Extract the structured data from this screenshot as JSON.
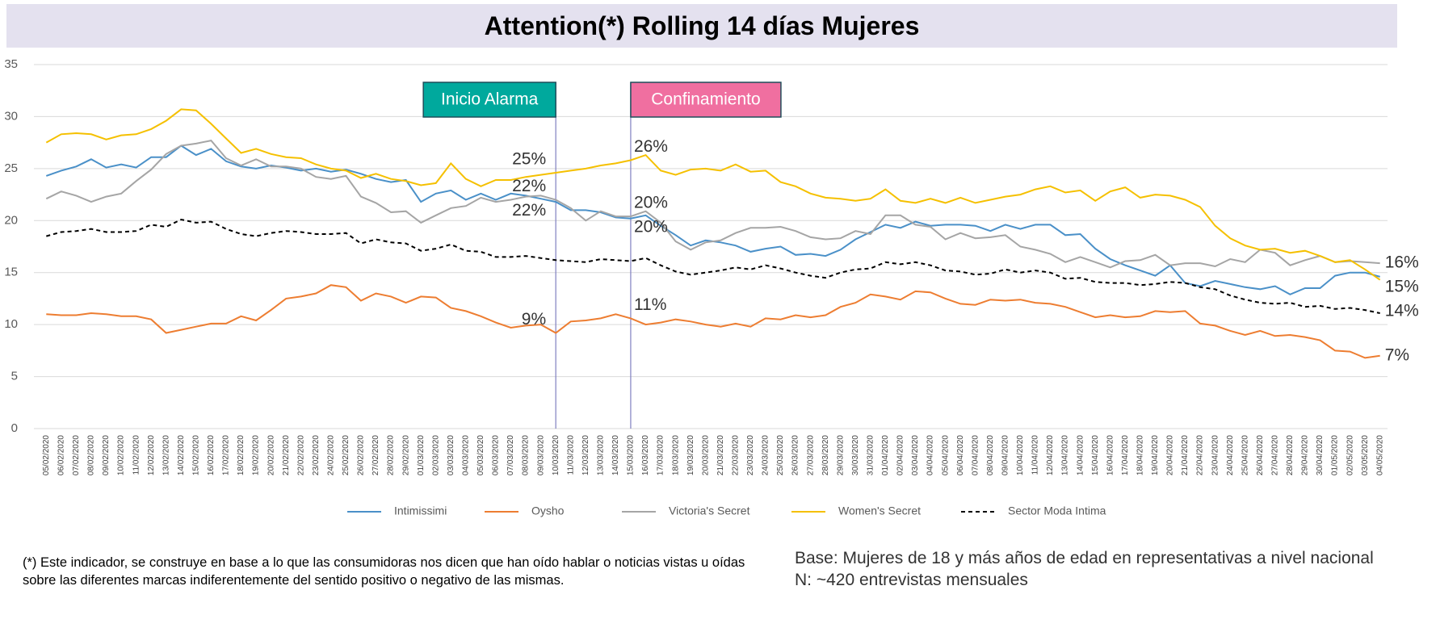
{
  "chart_data": {
    "type": "line",
    "title": "Attention(*) Rolling 14 días Mujeres",
    "categories": [
      "05/02/2020",
      "06/02/2020",
      "07/02/2020",
      "08/02/2020",
      "09/02/2020",
      "10/02/2020",
      "11/02/2020",
      "12/02/2020",
      "13/02/2020",
      "14/02/2020",
      "15/02/2020",
      "16/02/2020",
      "17/02/2020",
      "18/02/2020",
      "19/02/2020",
      "20/02/2020",
      "21/02/2020",
      "22/02/2020",
      "23/02/2020",
      "24/02/2020",
      "25/02/2020",
      "26/02/2020",
      "27/02/2020",
      "28/02/2020",
      "29/02/2020",
      "01/03/2020",
      "02/03/2020",
      "03/03/2020",
      "04/03/2020",
      "05/03/2020",
      "06/03/2020",
      "07/03/2020",
      "08/03/2020",
      "09/03/2020",
      "10/03/2020",
      "11/03/2020",
      "12/03/2020",
      "13/03/2020",
      "14/03/2020",
      "15/03/2020",
      "16/03/2020",
      "17/03/2020",
      "18/03/2020",
      "19/03/2020",
      "20/03/2020",
      "21/03/2020",
      "22/03/2020",
      "23/03/2020",
      "24/03/2020",
      "25/03/2020",
      "26/03/2020",
      "27/03/2020",
      "28/03/2020",
      "29/03/2020",
      "30/03/2020",
      "31/03/2020",
      "01/04/2020",
      "02/04/2020",
      "03/04/2020",
      "04/04/2020",
      "05/04/2020",
      "06/04/2020",
      "07/04/2020",
      "08/04/2020",
      "09/04/2020",
      "10/04/2020",
      "11/04/2020",
      "12/04/2020",
      "13/04/2020",
      "14/04/2020",
      "15/04/2020",
      "16/04/2020",
      "17/04/2020",
      "18/04/2020",
      "19/04/2020",
      "20/04/2020",
      "21/04/2020",
      "22/04/2020",
      "23/04/2020",
      "24/04/2020",
      "25/04/2020",
      "26/04/2020",
      "27/04/2020",
      "28/04/2020",
      "29/04/2020",
      "30/04/2020",
      "01/05/2020",
      "02/05/2020",
      "03/05/2020",
      "04/05/2020"
    ],
    "series": [
      {
        "name": "Intimissimi",
        "color": "#4a90c8",
        "values": [
          24.3,
          24.8,
          25.2,
          25.9,
          25.1,
          25.4,
          25.1,
          26.1,
          26.1,
          27.2,
          26.3,
          26.9,
          25.7,
          25.2,
          25.0,
          25.3,
          25.1,
          24.8,
          25.0,
          24.7,
          24.9,
          24.5,
          24.0,
          23.7,
          23.9,
          21.8,
          22.6,
          22.9,
          22.0,
          22.6,
          22.0,
          22.6,
          22.4,
          22.1,
          21.8,
          21.0,
          21.0,
          20.8,
          20.3,
          20.2,
          20.5,
          19.5,
          18.6,
          17.6,
          18.1,
          17.9,
          17.6,
          17.0,
          17.3,
          17.5,
          16.7,
          16.8,
          16.6,
          17.2,
          18.2,
          18.9,
          19.6,
          19.3,
          19.9,
          19.5,
          19.6,
          19.6,
          19.5,
          19.0,
          19.6,
          19.2,
          19.6,
          19.6,
          18.6,
          18.7,
          17.3,
          16.3,
          15.7,
          15.2,
          14.7,
          15.7,
          14.0,
          13.7,
          14.2,
          13.9,
          13.6,
          13.4,
          13.7,
          12.9,
          13.5,
          13.5,
          14.7,
          15.0,
          15.0,
          14.6
        ],
        "value_labels": [
          null,
          null,
          null,
          null,
          null,
          null,
          null,
          null,
          null,
          null,
          null,
          null,
          null,
          null,
          null,
          null,
          null,
          null,
          null,
          null,
          null,
          null,
          null,
          null,
          null,
          null,
          null,
          null,
          null,
          null,
          null,
          null,
          null,
          null,
          "22%",
          null,
          null,
          null,
          null,
          "20%",
          null,
          null,
          null,
          null,
          null,
          null,
          null,
          null,
          null,
          null,
          null,
          null,
          null,
          null,
          null,
          null,
          null,
          null,
          null,
          null,
          null,
          null,
          null,
          null,
          null,
          null,
          null,
          null,
          null,
          null,
          null,
          null,
          null,
          null,
          null,
          null,
          null,
          null,
          null,
          null,
          null,
          null,
          null,
          null,
          null,
          null,
          null,
          null,
          null,
          "15%"
        ]
      },
      {
        "name": "Oysho",
        "color": "#ed7d31",
        "values": [
          11.0,
          10.9,
          10.9,
          11.1,
          11.0,
          10.8,
          10.8,
          10.5,
          9.2,
          9.5,
          9.8,
          10.1,
          10.1,
          10.8,
          10.4,
          11.4,
          12.5,
          12.7,
          13.0,
          13.8,
          13.6,
          12.3,
          13.0,
          12.7,
          12.1,
          12.7,
          12.6,
          11.6,
          11.3,
          10.8,
          10.2,
          9.7,
          9.9,
          10.0,
          9.2,
          10.3,
          10.4,
          10.6,
          11.0,
          10.6,
          10.0,
          10.2,
          10.5,
          10.3,
          10.0,
          9.8,
          10.1,
          9.8,
          10.6,
          10.5,
          10.9,
          10.7,
          10.9,
          11.7,
          12.1,
          12.9,
          12.7,
          12.4,
          13.2,
          13.1,
          12.5,
          12.0,
          11.9,
          12.4,
          12.3,
          12.4,
          12.1,
          12.0,
          11.7,
          11.2,
          10.7,
          10.9,
          10.7,
          10.8,
          11.3,
          11.2,
          11.3,
          10.1,
          9.9,
          9.4,
          9.0,
          9.4,
          8.9,
          9.0,
          8.8,
          8.5,
          7.5,
          7.4,
          6.8,
          7.0
        ],
        "value_labels": [
          null,
          null,
          null,
          null,
          null,
          null,
          null,
          null,
          null,
          null,
          null,
          null,
          null,
          null,
          null,
          null,
          null,
          null,
          null,
          null,
          null,
          null,
          null,
          null,
          null,
          null,
          null,
          null,
          null,
          null,
          null,
          null,
          null,
          null,
          "9%",
          null,
          null,
          null,
          null,
          "11%",
          null,
          null,
          null,
          null,
          null,
          null,
          null,
          null,
          null,
          null,
          null,
          null,
          null,
          null,
          null,
          null,
          null,
          null,
          null,
          null,
          null,
          null,
          null,
          null,
          null,
          null,
          null,
          null,
          null,
          null,
          null,
          null,
          null,
          null,
          null,
          null,
          null,
          null,
          null,
          null,
          null,
          null,
          null,
          null,
          null,
          null,
          null,
          null,
          null,
          "7%"
        ]
      },
      {
        "name": "Victoria's Secret",
        "color": "#a5a5a5",
        "values": [
          22.1,
          22.8,
          22.4,
          21.8,
          22.3,
          22.6,
          23.8,
          24.9,
          26.4,
          27.2,
          27.4,
          27.7,
          26.0,
          25.3,
          25.9,
          25.2,
          25.2,
          25.0,
          24.2,
          24.0,
          24.3,
          22.3,
          21.7,
          20.8,
          20.9,
          19.8,
          20.5,
          21.2,
          21.4,
          22.2,
          21.8,
          22.0,
          22.3,
          22.4,
          22.0,
          21.2,
          20.0,
          20.9,
          20.4,
          20.4,
          20.9,
          19.8,
          18.0,
          17.2,
          17.9,
          18.1,
          18.8,
          19.3,
          19.3,
          19.4,
          19.0,
          18.4,
          18.2,
          18.3,
          19.0,
          18.7,
          20.5,
          20.5,
          19.6,
          19.4,
          18.2,
          18.8,
          18.3,
          18.4,
          18.6,
          17.5,
          17.2,
          16.8,
          16.0,
          16.5,
          16.0,
          15.5,
          16.1,
          16.2,
          16.7,
          15.7,
          15.9,
          15.9,
          15.6,
          16.3,
          16.0,
          17.2,
          16.9,
          15.7,
          16.2,
          16.6,
          16.0,
          16.1,
          16.0,
          15.9
        ],
        "value_labels": [
          null,
          null,
          null,
          null,
          null,
          null,
          null,
          null,
          null,
          null,
          null,
          null,
          null,
          null,
          null,
          null,
          null,
          null,
          null,
          null,
          null,
          null,
          null,
          null,
          null,
          null,
          null,
          null,
          null,
          null,
          null,
          null,
          null,
          null,
          "22%",
          null,
          null,
          null,
          null,
          "20%",
          null,
          null,
          null,
          null,
          null,
          null,
          null,
          null,
          null,
          null,
          null,
          null,
          null,
          null,
          null,
          null,
          null,
          null,
          null,
          null,
          null,
          null,
          null,
          null,
          null,
          null,
          null,
          null,
          null,
          null,
          null,
          null,
          null,
          null,
          null,
          null,
          null,
          null,
          null,
          null,
          null,
          null,
          null,
          null,
          null,
          null,
          null,
          null,
          null,
          "16%"
        ]
      },
      {
        "name": "Women's Secret",
        "color": "#f5c000",
        "values": [
          27.5,
          28.3,
          28.4,
          28.3,
          27.8,
          28.2,
          28.3,
          28.8,
          29.6,
          30.7,
          30.6,
          29.3,
          27.9,
          26.5,
          26.9,
          26.4,
          26.1,
          26.0,
          25.4,
          25.0,
          24.8,
          24.1,
          24.5,
          24.0,
          23.8,
          23.4,
          23.6,
          25.5,
          24.0,
          23.3,
          23.9,
          23.9,
          24.2,
          24.4,
          24.6,
          24.8,
          25.0,
          25.3,
          25.5,
          25.8,
          26.3,
          24.8,
          24.4,
          24.9,
          25.0,
          24.8,
          25.4,
          24.7,
          24.8,
          23.7,
          23.3,
          22.6,
          22.2,
          22.1,
          21.9,
          22.1,
          23.0,
          21.9,
          21.7,
          22.1,
          21.7,
          22.2,
          21.7,
          22.0,
          22.3,
          22.5,
          23.0,
          23.3,
          22.7,
          22.9,
          21.9,
          22.8,
          23.2,
          22.2,
          22.5,
          22.4,
          22.0,
          21.3,
          19.5,
          18.3,
          17.6,
          17.2,
          17.3,
          16.9,
          17.1,
          16.6,
          16.0,
          16.2,
          15.3,
          14.3
        ],
        "value_labels": [
          null,
          null,
          null,
          null,
          null,
          null,
          null,
          null,
          null,
          null,
          null,
          null,
          null,
          null,
          null,
          null,
          null,
          null,
          null,
          null,
          null,
          null,
          null,
          null,
          null,
          null,
          null,
          null,
          null,
          null,
          null,
          null,
          null,
          null,
          "25%",
          null,
          null,
          null,
          null,
          "26%",
          null,
          null,
          null,
          null,
          null,
          null,
          null,
          null,
          null,
          null,
          null,
          null,
          null,
          null,
          null,
          null,
          null,
          null,
          null,
          null,
          null,
          null,
          null,
          null,
          null,
          null,
          null,
          null,
          null,
          null,
          null,
          null,
          null,
          null,
          null,
          null,
          null,
          null,
          null,
          null,
          null,
          null,
          null,
          null,
          null,
          null,
          null,
          null,
          null,
          "14%"
        ]
      },
      {
        "name": "Sector Moda Intima",
        "color": "#000000",
        "line_style": "dashed",
        "values": [
          18.5,
          18.9,
          19.0,
          19.2,
          18.9,
          18.9,
          19.0,
          19.6,
          19.4,
          20.1,
          19.8,
          19.9,
          19.2,
          18.7,
          18.5,
          18.8,
          19.0,
          18.9,
          18.7,
          18.7,
          18.8,
          17.8,
          18.2,
          17.9,
          17.8,
          17.1,
          17.3,
          17.7,
          17.1,
          17.0,
          16.5,
          16.5,
          16.6,
          16.4,
          16.2,
          16.1,
          16.0,
          16.3,
          16.2,
          16.1,
          16.4,
          15.7,
          15.1,
          14.8,
          15.0,
          15.2,
          15.5,
          15.3,
          15.7,
          15.4,
          15.0,
          14.7,
          14.5,
          15.0,
          15.3,
          15.4,
          16.0,
          15.8,
          16.0,
          15.7,
          15.2,
          15.1,
          14.8,
          14.9,
          15.3,
          15.0,
          15.2,
          15.0,
          14.4,
          14.5,
          14.1,
          14.0,
          14.0,
          13.8,
          13.9,
          14.1,
          14.0,
          13.6,
          13.4,
          12.8,
          12.4,
          12.1,
          12.0,
          12.1,
          11.7,
          11.8,
          11.5,
          11.6,
          11.4,
          11.1
        ]
      }
    ],
    "ylim": [
      0,
      35
    ],
    "yticks": [
      0,
      5,
      10,
      15,
      20,
      25,
      30,
      35
    ],
    "grid": true,
    "legend": "bottom",
    "annotations": [
      {
        "text": "Inicio Alarma",
        "category": "10/03/2020",
        "color": "#00a99d",
        "side": "left"
      },
      {
        "text": "Confinamiento",
        "category": "15/03/2020",
        "color": "#f06fa0",
        "side": "right"
      }
    ],
    "footnote": "(*) Este indicador, se construye en base a lo que las consumidoras nos dicen que han oído hablar o noticias vistas u oídas sobre las diferentes marcas indiferentemente del sentido positivo o negativo de las mismas.",
    "notes": [
      "Base: Mujeres de 18 y más años de edad en representativas a nivel nacional",
      "N: ~420 entrevistas mensuales"
    ]
  }
}
